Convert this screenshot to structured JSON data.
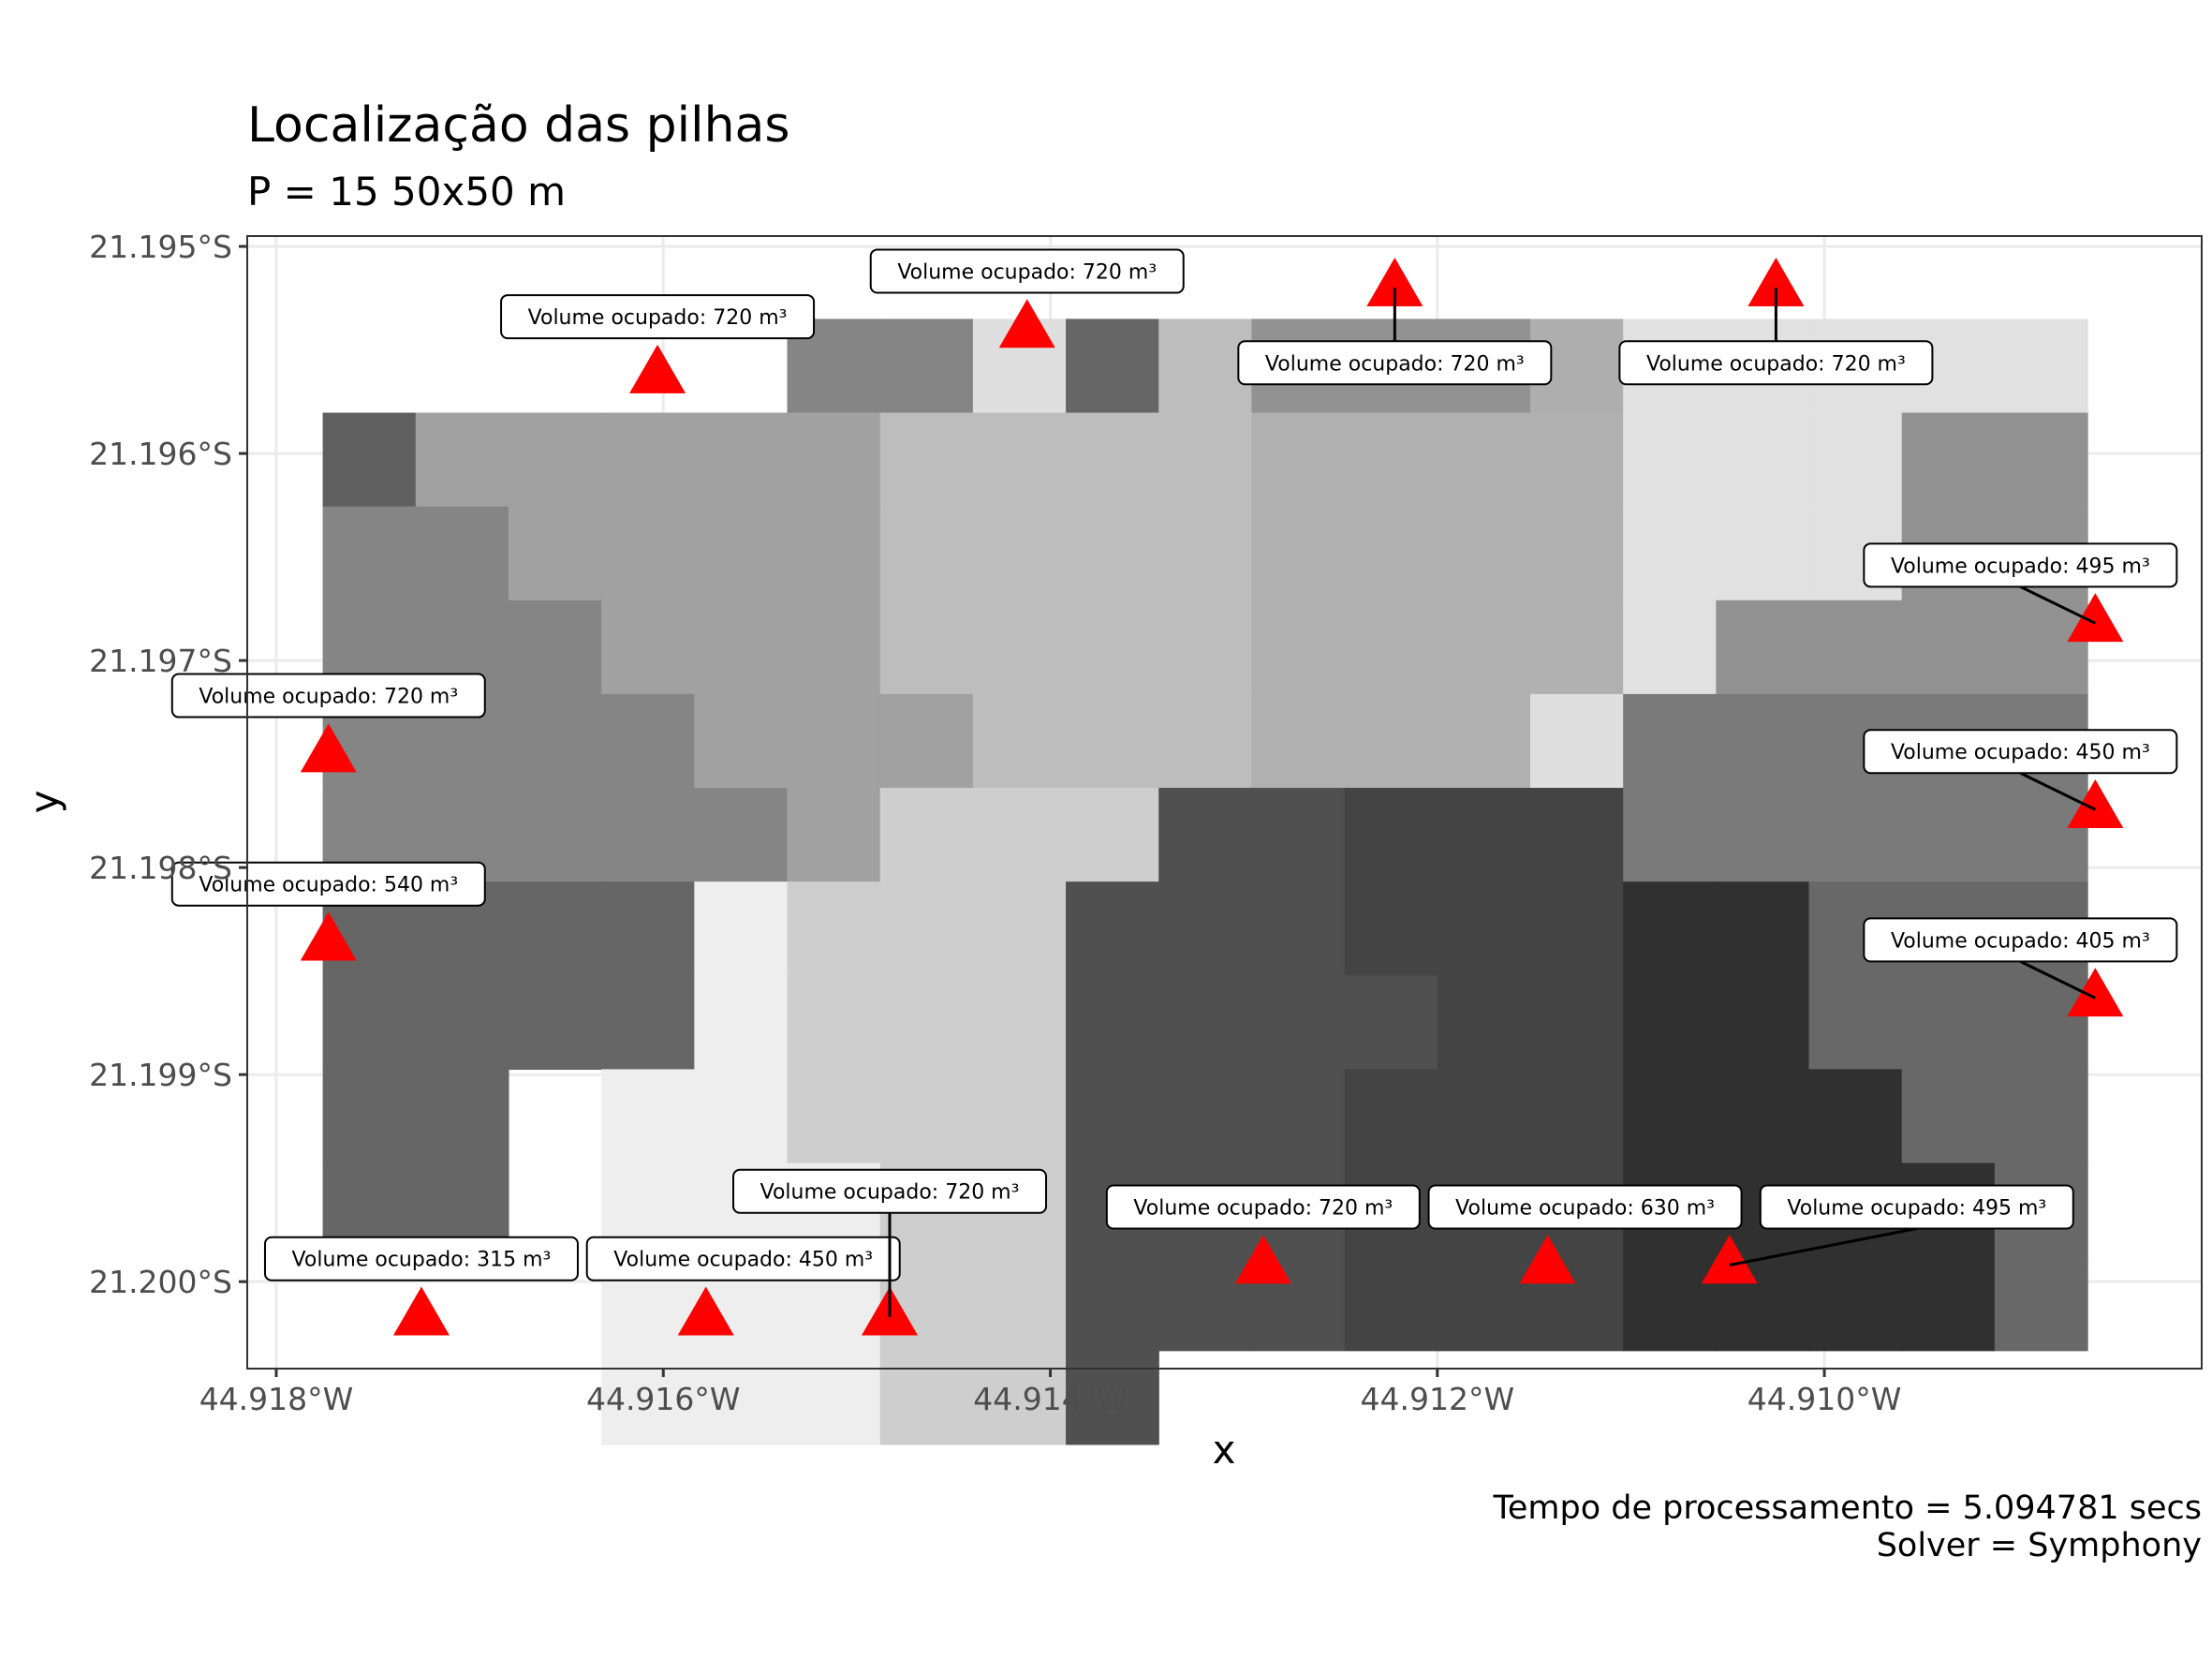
{
  "chart_data": {
    "type": "heatmap",
    "title": "Localização das pilhas",
    "subtitle": "P = 15  50x50 m",
    "xlabel": "x",
    "ylabel": "y",
    "caption_lines": [
      "Tempo de processamento = 5.094781 secs",
      "Solver = Symphony"
    ],
    "xlim": [
      -44.91815,
      -44.90805
    ],
    "ylim": [
      -21.20042,
      -21.19495
    ],
    "x_ticks": [
      {
        "value": -44.918,
        "label": "44.918°W"
      },
      {
        "value": -44.916,
        "label": "44.916°W"
      },
      {
        "value": -44.914,
        "label": "44.914°W"
      },
      {
        "value": -44.912,
        "label": "44.912°W"
      },
      {
        "value": -44.91,
        "label": "44.910°W"
      }
    ],
    "y_ticks": [
      {
        "value": -21.195,
        "label": "21.195°S"
      },
      {
        "value": -21.196,
        "label": "21.196°S"
      },
      {
        "value": -21.197,
        "label": "21.197°S"
      },
      {
        "value": -21.198,
        "label": "21.198°S"
      },
      {
        "value": -21.199,
        "label": "21.199°S"
      },
      {
        "value": -21.2,
        "label": "21.200°S"
      }
    ],
    "grid": true,
    "panel_border": true,
    "colors": {
      "marker": "#ff0000",
      "grid": "#ebebeb",
      "border": "#333333"
    },
    "grid_x0": -44.91776,
    "grid_dx": -0.00048,
    "grid_y0": -21.19535,
    "grid_dy": 0.000453,
    "tile_columns": 19,
    "tile_rows": 12,
    "tile_shades": [
      [
        "",
        "",
        "",
        "",
        "",
        "#858585",
        "#858585",
        "#dfdfdf",
        "#666666",
        "#bdbdbd",
        "#929292",
        "#929292",
        "#929292",
        "#aeaeae",
        "#e1e1e1",
        "#e1e1e1",
        "#e1e1e1",
        "#e1e1e1",
        "#e1e1e1"
      ],
      [
        "#5f5f5f",
        "#a1a1a1",
        "#a1a1a1",
        "#a1a1a1",
        "#a1a1a1",
        "#a1a1a1",
        "#bdbdbd",
        "#bdbdbd",
        "#bdbdbd",
        "#bdbdbd",
        "#b0b0b0",
        "#b0b0b0",
        "#b0b0b0",
        "#b0b0b0",
        "#e1e1e1",
        "#e1e1e1",
        "#e1e1e1",
        "#929292",
        "#929292"
      ],
      [
        "#858585",
        "#858585",
        "#a1a1a1",
        "#a1a1a1",
        "#a1a1a1",
        "#a1a1a1",
        "#bdbdbd",
        "#bdbdbd",
        "#bdbdbd",
        "#bdbdbd",
        "#b0b0b0",
        "#b0b0b0",
        "#b0b0b0",
        "#b0b0b0",
        "#e1e1e1",
        "#e1e1e1",
        "#e1e1e1",
        "#929292",
        "#929292"
      ],
      [
        "#858585",
        "#858585",
        "#858585",
        "#a1a1a1",
        "#a1a1a1",
        "#a1a1a1",
        "#bdbdbd",
        "#bdbdbd",
        "#bdbdbd",
        "#bdbdbd",
        "#b0b0b0",
        "#b0b0b0",
        "#b0b0b0",
        "#b0b0b0",
        "#e1e1e1",
        "#929292",
        "#929292",
        "#929292",
        "#929292"
      ],
      [
        "#858585",
        "#858585",
        "#858585",
        "#858585",
        "#a1a1a1",
        "#a1a1a1",
        "#a1a1a1",
        "#bdbdbd",
        "#bdbdbd",
        "#bdbdbd",
        "#b0b0b0",
        "#b0b0b0",
        "#b0b0b0",
        "#dfdfdf",
        "#7a7a7a",
        "#7a7a7a",
        "#7a7a7a",
        "#7a7a7a",
        "#7a7a7a"
      ],
      [
        "#858585",
        "#858585",
        "#858585",
        "#858585",
        "#858585",
        "#a1a1a1",
        "#cecece",
        "#cecece",
        "#cecece",
        "#505050",
        "#505050",
        "#444444",
        "#444444",
        "#444444",
        "#7a7a7a",
        "#7a7a7a",
        "#7a7a7a",
        "#7a7a7a",
        "#7a7a7a"
      ],
      [
        "#666666",
        "#666666",
        "#666666",
        "#666666",
        "#eeeeee",
        "#cecece",
        "#cecece",
        "#cecece",
        "#505050",
        "#505050",
        "#505050",
        "#444444",
        "#444444",
        "#444444",
        "#303030",
        "#303030",
        "#686868",
        "#686868",
        "#686868"
      ],
      [
        "#666666",
        "#666666",
        "#666666",
        "#666666",
        "#eeeeee",
        "#cecece",
        "#cecece",
        "#cecece",
        "#505050",
        "#505050",
        "#505050",
        "#505050",
        "#444444",
        "#444444",
        "#303030",
        "#303030",
        "#686868",
        "#686868",
        "#686868"
      ],
      [
        "#666666",
        "#666666",
        "",
        "#eeeeee",
        "#eeeeee",
        "#cecece",
        "#cecece",
        "#cecece",
        "#505050",
        "#505050",
        "#505050",
        "#444444",
        "#444444",
        "#444444",
        "#303030",
        "#303030",
        "#303030",
        "#686868",
        "#686868"
      ],
      [
        "#666666",
        "#666666",
        "",
        "#eeeeee",
        "#eeeeee",
        "#eeeeee",
        "#cecece",
        "#cecece",
        "#505050",
        "#505050",
        "#505050",
        "#444444",
        "#444444",
        "#444444",
        "#303030",
        "#303030",
        "#303030",
        "#303030",
        "#686868"
      ],
      [
        "",
        "",
        "",
        "#eeeeee",
        "#eeeeee",
        "#eeeeee",
        "#cecece",
        "#cecece",
        "#505050",
        "#505050",
        "#505050",
        "#444444",
        "#444444",
        "#444444",
        "#303030",
        "#303030",
        "#303030",
        "#303030",
        "#686868"
      ],
      [
        "",
        "",
        "",
        "#eeeeee",
        "#eeeeee",
        "#eeeeee",
        "#cecece",
        "#cecece",
        "#505050",
        "",
        "",
        "",
        "",
        "",
        "",
        "",
        "",
        "",
        ""
      ]
    ],
    "piles": [
      {
        "lon": -44.91773,
        "lat": -21.19745,
        "label": "Volume ocupado: 720 m³"
      },
      {
        "lon": -44.91773,
        "lat": -21.19836,
        "label": "Volume ocupado: 540 m³"
      },
      {
        "lon": -44.91725,
        "lat": -21.20017,
        "label": "Volume ocupado: 315 m³"
      },
      {
        "lon": -44.91603,
        "lat": -21.19562,
        "label": "Volume ocupado: 720 m³"
      },
      {
        "lon": -44.91578,
        "lat": -21.20017,
        "label": "Volume ocupado: 450 m³"
      },
      {
        "lon": -44.91483,
        "lat": -21.20017,
        "label": "Volume ocupado: 720 m³"
      },
      {
        "lon": -44.91412,
        "lat": -21.1954,
        "label": "Volume ocupado: 720 m³"
      },
      {
        "lon": -44.9129,
        "lat": -21.19992,
        "label": "Volume ocupado: 720 m³"
      },
      {
        "lon": -44.91222,
        "lat": -21.1952,
        "label": "Volume ocupado: 720 m³"
      },
      {
        "lon": -44.91143,
        "lat": -21.19992,
        "label": "Volume ocupado: 630 m³"
      },
      {
        "lon": -44.91049,
        "lat": -21.19992,
        "label": "Volume ocupado: 495 m³"
      },
      {
        "lon": -44.91025,
        "lat": -21.1952,
        "label": "Volume ocupado: 720 m³"
      },
      {
        "lon": -44.9086,
        "lat": -21.19682,
        "label": "Volume ocupado: 495 m³"
      },
      {
        "lon": -44.9086,
        "lat": -21.19772,
        "label": "Volume ocupado: 450 m³"
      },
      {
        "lon": -44.9086,
        "lat": -21.19863,
        "label": "Volume ocupado: 405 m³"
      }
    ]
  }
}
